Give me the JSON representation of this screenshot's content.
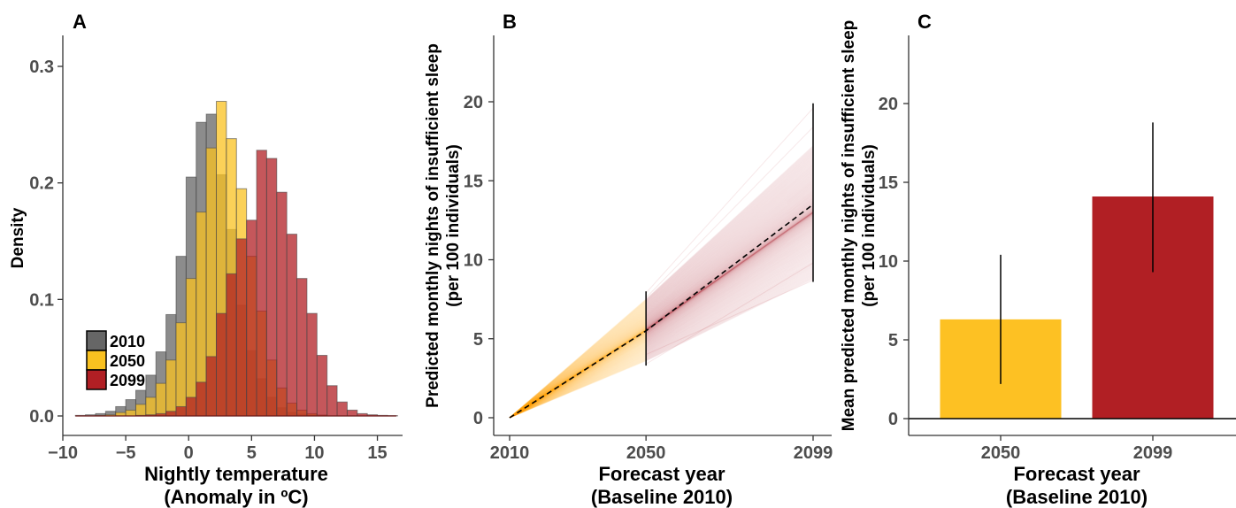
{
  "chart_data": [
    {
      "panel": "A",
      "type": "bar",
      "subtype": "histogram",
      "panel_label": "A",
      "xlabel": "Nightly temperature",
      "xlabel_line2": "(Anomaly in ºC)",
      "ylabel": "Density",
      "xlim": [
        -10,
        17
      ],
      "ylim": [
        0,
        0.32
      ],
      "xticks": [
        "−10",
        "−5",
        "0",
        "5",
        "10",
        "15"
      ],
      "xtick_values": [
        -10,
        -5,
        0,
        5,
        10,
        15
      ],
      "yticks": [
        "0.0",
        "0.1",
        "0.2",
        "0.3"
      ],
      "ytick_values": [
        0,
        0.1,
        0.2,
        0.3
      ],
      "bin_start": -9,
      "bin_width": 0.8,
      "legend_position": "bottom-left",
      "series": [
        {
          "name": "2010",
          "color": "#666666",
          "values": [
            0.0005,
            0.001,
            0.002,
            0.004,
            0.008,
            0.014,
            0.022,
            0.035,
            0.055,
            0.087,
            0.137,
            0.205,
            0.252,
            0.259,
            0.207,
            0.16,
            0.095,
            0.056,
            0.032,
            0.016,
            0.007,
            0.003,
            0.0015,
            0.0008,
            0,
            0,
            0,
            0,
            0,
            0,
            0,
            0,
            0,
            0
          ]
        },
        {
          "name": "2050",
          "color": "#F9C120",
          "values": [
            0,
            0,
            0.0005,
            0.001,
            0.003,
            0.005,
            0.01,
            0.016,
            0.028,
            0.048,
            0.08,
            0.118,
            0.175,
            0.23,
            0.27,
            0.238,
            0.195,
            0.137,
            0.09,
            0.048,
            0.024,
            0.011,
            0.005,
            0.002,
            0.0008,
            0,
            0,
            0,
            0,
            0,
            0,
            0,
            0,
            0
          ]
        },
        {
          "name": "2099",
          "color": "#B11F24",
          "values": [
            0,
            0,
            0,
            0,
            0,
            0,
            0.0005,
            0.001,
            0.002,
            0.004,
            0.008,
            0.016,
            0.029,
            0.051,
            0.088,
            0.122,
            0.152,
            0.168,
            0.228,
            0.221,
            0.192,
            0.156,
            0.118,
            0.088,
            0.052,
            0.026,
            0.012,
            0.005,
            0.002,
            0.001,
            0.0005,
            0.0003,
            0,
            0
          ]
        }
      ]
    },
    {
      "panel": "B",
      "type": "line",
      "panel_label": "B",
      "xlabel": "Forecast year",
      "xlabel_line2": "(Baseline 2010)",
      "ylabel": "Predicted monthly nights of insufficient sleep",
      "ylabel_line2": "(per 100 individuals)",
      "categories": [
        "2010",
        "2050",
        "2099"
      ],
      "x": [
        2010,
        2050,
        2099
      ],
      "ylim": [
        -1,
        24
      ],
      "yticks": [
        "0",
        "5",
        "10",
        "15",
        "20"
      ],
      "ytick_values": [
        0,
        5,
        10,
        15,
        20
      ],
      "mean": [
        0,
        5.5,
        13.5
      ],
      "intervals": [
        {
          "x": 2050,
          "low": 3.3,
          "high": 8.0
        },
        {
          "x": 2099,
          "low": 8.6,
          "high": 19.9
        }
      ],
      "draw_range_2050": [
        3.6,
        7.5
      ],
      "draw_range_2099": [
        8.8,
        17.2
      ],
      "segment_colors": {
        "2010_2050": "#F9A800",
        "2050_2099": "#B11F24"
      }
    },
    {
      "panel": "C",
      "type": "bar",
      "panel_label": "C",
      "xlabel": "Forecast year",
      "xlabel_line2": "(Baseline 2010)",
      "ylabel": "Mean predicted monthly nights of insufficient sleep",
      "ylabel_line2": "(per 100 individuals)",
      "categories": [
        "2050",
        "2099"
      ],
      "values": [
        6.3,
        14.1
      ],
      "error_low": [
        2.2,
        9.3
      ],
      "error_high": [
        10.4,
        18.8
      ],
      "colors": [
        "#FDC123",
        "#B11F24"
      ],
      "ylim": [
        -1,
        24
      ],
      "yticks": [
        "0",
        "5",
        "10",
        "15",
        "20"
      ],
      "ytick_values": [
        0,
        5,
        10,
        15,
        20
      ]
    }
  ]
}
